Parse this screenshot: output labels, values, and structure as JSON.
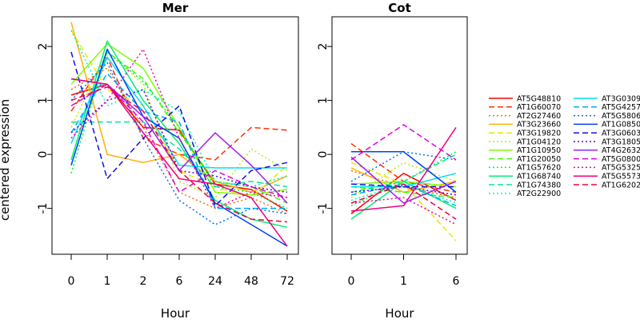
{
  "chart_data": {
    "type": "line",
    "ylabel": "centered expression",
    "ylim": [
      -1.85,
      2.55
    ],
    "yticks": [
      -1,
      0,
      1,
      2
    ],
    "grid": false,
    "legend_position": "right",
    "series_meta": [
      {
        "name": "AT5G48810",
        "color": "#FF0000",
        "dash": "solid"
      },
      {
        "name": "AT1G60070",
        "color": "#FF3000",
        "dash": "dashed"
      },
      {
        "name": "AT2G27460",
        "color": "#FF6A00",
        "dash": "dotted"
      },
      {
        "name": "AT3G23660",
        "color": "#FFB000",
        "dash": "solid"
      },
      {
        "name": "AT3G19820",
        "color": "#E8E800",
        "dash": "dashed"
      },
      {
        "name": "AT1G04120",
        "color": "#B8F000",
        "dash": "dotted"
      },
      {
        "name": "AT1G10950",
        "color": "#80FF00",
        "dash": "solid"
      },
      {
        "name": "AT1G20050",
        "color": "#40FF00",
        "dash": "dashed"
      },
      {
        "name": "AT1G57620",
        "color": "#00F040",
        "dash": "dotted"
      },
      {
        "name": "AT1G68740",
        "color": "#00F070",
        "dash": "solid"
      },
      {
        "name": "AT1G74380",
        "color": "#00E8A0",
        "dash": "dashed"
      },
      {
        "name": "AT2G22900",
        "color": "#00F0C8",
        "dash": "dotted"
      },
      {
        "name": "AT3G0309",
        "color": "#00E0F0",
        "dash": "solid"
      },
      {
        "name": "AT5G4257",
        "color": "#00A8FF",
        "dash": "dashed"
      },
      {
        "name": "AT5G5806",
        "color": "#0070FF",
        "dash": "dotted"
      },
      {
        "name": "AT1G0850",
        "color": "#0040FF",
        "dash": "solid"
      },
      {
        "name": "AT3G0603",
        "color": "#1010E0",
        "dash": "dashed"
      },
      {
        "name": "AT3G1805",
        "color": "#6000E0",
        "dash": "dotted"
      },
      {
        "name": "AT4G2632",
        "color": "#A020F0",
        "dash": "solid"
      },
      {
        "name": "AT5G0800",
        "color": "#E000E0",
        "dash": "dashed"
      },
      {
        "name": "AT5G5325",
        "color": "#F000B0",
        "dash": "dotted"
      },
      {
        "name": "AT5G5573",
        "color": "#F00080",
        "dash": "solid"
      },
      {
        "name": "AT1G6202",
        "color": "#F00040",
        "dash": "dashed"
      }
    ],
    "panels": [
      {
        "title": "Mer",
        "xlabel": "Hour",
        "categories": [
          "0",
          "1",
          "2",
          "6",
          "24",
          "48",
          "72"
        ],
        "values": [
          [
            1.1,
            1.3,
            0.5,
            0.45,
            -0.55,
            -0.65,
            -1.05
          ],
          [
            0.8,
            1.8,
            0.3,
            0.0,
            -0.1,
            0.5,
            0.45
          ],
          [
            1.2,
            1.6,
            0.5,
            -0.7,
            -1.0,
            -0.8,
            -1.1
          ],
          [
            2.45,
            0.0,
            -0.15,
            0.0,
            -0.5,
            -0.7,
            -0.4
          ],
          [
            2.3,
            1.2,
            0.9,
            -0.3,
            -0.6,
            -0.8,
            -0.2
          ],
          [
            0.5,
            1.9,
            1.3,
            -0.5,
            -0.8,
            0.1,
            -0.3
          ],
          [
            1.3,
            2.05,
            1.6,
            0.5,
            -0.7,
            -0.75,
            -0.65
          ],
          [
            -0.2,
            1.9,
            1.4,
            0.4,
            -0.5,
            -0.6,
            -0.9
          ],
          [
            -0.35,
            1.9,
            1.35,
            0.5,
            -0.6,
            -0.7,
            -1.0
          ],
          [
            -0.1,
            2.1,
            1.0,
            0.2,
            -0.85,
            -1.2,
            -1.35
          ],
          [
            0.6,
            0.6,
            0.6,
            0.1,
            -0.6,
            -0.5,
            -0.6
          ],
          [
            2.3,
            0.9,
            1.2,
            0.8,
            -0.5,
            -0.6,
            -0.4
          ],
          [
            0.2,
            1.8,
            0.9,
            -0.2,
            -0.25,
            -0.25,
            -0.25
          ],
          [
            0.4,
            1.5,
            0.8,
            0.6,
            -1.0,
            -1.0,
            -1.0
          ],
          [
            1.0,
            1.7,
            0.3,
            -0.85,
            -1.3,
            -1.0,
            -1.1
          ],
          [
            -0.2,
            1.95,
            0.7,
            0.3,
            -0.9,
            -1.3,
            -1.7
          ],
          [
            1.9,
            -0.45,
            0.3,
            0.9,
            -0.95,
            -0.3,
            -0.15
          ],
          [
            0.4,
            1.0,
            1.2,
            -0.3,
            -0.4,
            -0.6,
            -0.7
          ],
          [
            1.4,
            1.3,
            0.7,
            -0.3,
            0.4,
            -0.2,
            -0.9
          ],
          [
            0.9,
            1.3,
            0.6,
            -0.7,
            -0.3,
            -0.6,
            -0.8
          ],
          [
            0.3,
            1.0,
            1.95,
            0.3,
            -1.0,
            -0.7,
            -0.8
          ],
          [
            1.4,
            1.3,
            0.4,
            -0.45,
            -0.55,
            -0.8,
            -1.7
          ],
          [
            1.0,
            1.25,
            0.8,
            -0.3,
            -0.9,
            -1.2,
            -1.25
          ]
        ]
      },
      {
        "title": "Cot",
        "xlabel": "Hour",
        "categories": [
          "0",
          "1",
          "6"
        ],
        "values": [
          [
            -1.1,
            -0.35,
            -0.85
          ],
          [
            0.2,
            -0.5,
            -0.7
          ],
          [
            -0.3,
            -0.6,
            -0.8
          ],
          [
            -0.25,
            -0.7,
            -0.5
          ],
          [
            -0.15,
            -0.55,
            -1.6
          ],
          [
            -0.8,
            -0.15,
            -0.5
          ],
          [
            -0.55,
            -0.5,
            -0.6
          ],
          [
            -0.6,
            -0.7,
            -0.8
          ],
          [
            -0.95,
            -0.5,
            0.05
          ],
          [
            -1.2,
            -0.5,
            -1.0
          ],
          [
            -0.7,
            -0.5,
            0.0
          ],
          [
            -0.85,
            -0.55,
            -0.9
          ],
          [
            -0.6,
            -0.6,
            -0.35
          ],
          [
            -0.75,
            -0.55,
            -0.95
          ],
          [
            -0.5,
            0.05,
            -0.1
          ],
          [
            0.05,
            0.05,
            -0.7
          ],
          [
            -0.55,
            -0.6,
            -0.6
          ],
          [
            -0.7,
            -0.6,
            -0.75
          ],
          [
            -0.05,
            -0.9,
            -0.5
          ],
          [
            -0.1,
            0.55,
            -0.1
          ],
          [
            -0.9,
            -0.8,
            -1.3
          ],
          [
            -1.05,
            -0.95,
            0.5
          ],
          [
            -0.9,
            -0.55,
            -1.2
          ]
        ]
      }
    ]
  }
}
